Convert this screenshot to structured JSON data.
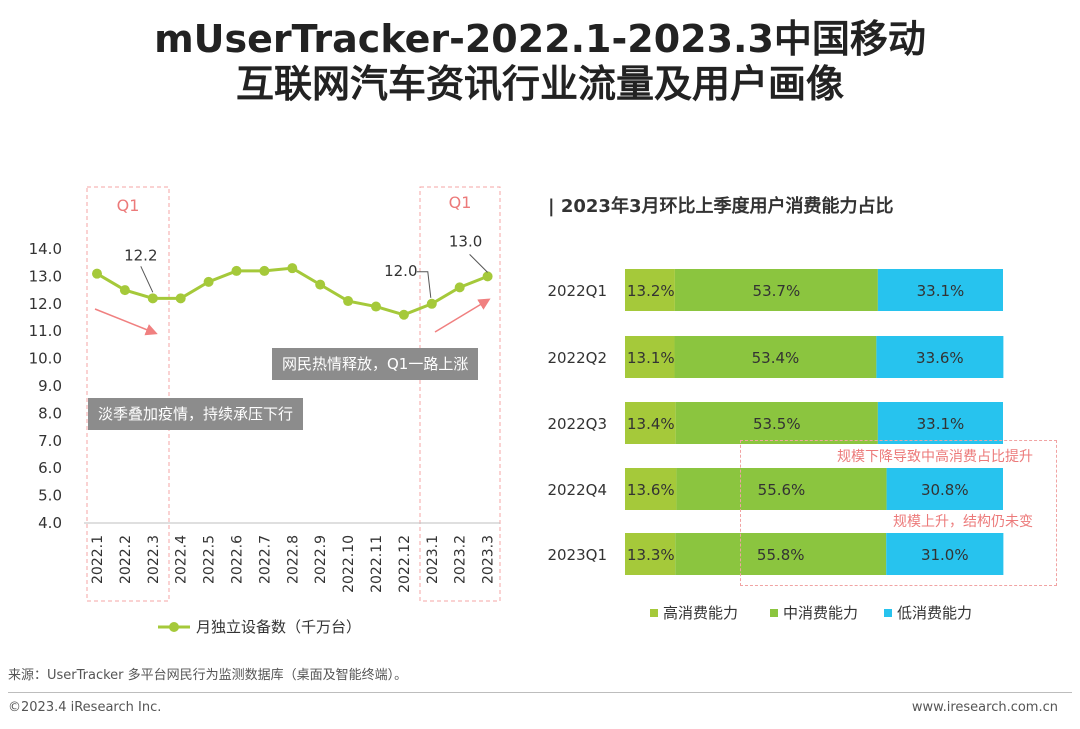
{
  "title": {
    "line1": "mUserTracker-2022.1-2023.3中国移动",
    "line2": "互联网汽车资讯行业流量及用户画像"
  },
  "colors": {
    "line": "#a5c93a",
    "high": "#a5c93a",
    "mid": "#8bc53f",
    "low": "#27c3ee",
    "arrow": "#f08080",
    "dashed": "#f4a6a6",
    "callout_bg": "#8c8c8c"
  },
  "left": {
    "highlight_label_1": "Q1",
    "highlight_label_2": "Q1",
    "callout_up": "网民热情释放，Q1一路上涨",
    "callout_down": "淡季叠加疫情，持续承压下行",
    "point_label_first": "12.2",
    "point_label_mid": "12.0",
    "point_label_last": "13.0"
  },
  "right": {
    "title": "| 2023年3月环比上季度用户消费能力占比",
    "note_top": "规模下降导致中高消费占比提升",
    "note_bottom": "规模上升，结构仍未变"
  },
  "chart_data": [
    {
      "type": "line",
      "categories": [
        "2022.1",
        "2022.2",
        "2022.3",
        "2022.4",
        "2022.5",
        "2022.6",
        "2022.7",
        "2022.8",
        "2022.9",
        "2022.10",
        "2022.11",
        "2022.12",
        "2023.1",
        "2023.2",
        "2023.3"
      ],
      "series": [
        {
          "name": "月独立设备数（千万台）",
          "values": [
            13.1,
            12.5,
            12.2,
            12.2,
            12.8,
            13.2,
            13.2,
            13.3,
            12.7,
            12.1,
            11.9,
            11.6,
            12.0,
            12.6,
            13.0
          ]
        }
      ],
      "yticks": [
        "14.0",
        "13.0",
        "12.0",
        "11.0",
        "10.0",
        "9.0",
        "8.0",
        "7.0",
        "6.0",
        "5.0",
        "4.0"
      ],
      "ylim": [
        4.0,
        14.0
      ],
      "legend_position": "bottom"
    },
    {
      "type": "bar",
      "stacked": true,
      "orientation": "horizontal",
      "categories": [
        "2022Q1",
        "2022Q2",
        "2022Q3",
        "2022Q4",
        "2023Q1"
      ],
      "series": [
        {
          "name": "高消费能力",
          "values": [
            13.2,
            13.1,
            13.4,
            13.6,
            13.3
          ],
          "labels": [
            "13.2%",
            "13.1%",
            "13.4%",
            "13.6%",
            "13.3%"
          ]
        },
        {
          "name": "中消费能力",
          "values": [
            53.7,
            53.4,
            53.5,
            55.6,
            55.8
          ],
          "labels": [
            "53.7%",
            "53.4%",
            "53.5%",
            "55.6%",
            "55.8%"
          ]
        },
        {
          "name": "低消费能力",
          "values": [
            33.1,
            33.6,
            33.1,
            30.8,
            31.0
          ],
          "labels": [
            "33.1%",
            "33.6%",
            "33.1%",
            "30.8%",
            "31.0%"
          ]
        }
      ],
      "legend_position": "bottom"
    }
  ],
  "footer": {
    "source": "来源：UserTracker 多平台网民行为监测数据库（桌面及智能终端）。",
    "copyright": "©2023.4 iResearch Inc.",
    "site": "www.iresearch.com.cn"
  }
}
